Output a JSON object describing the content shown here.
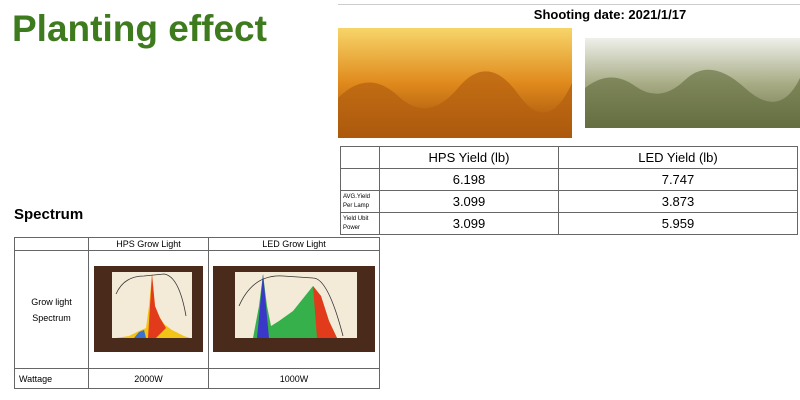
{
  "header": {
    "title": "Planting effect",
    "shooting_date": "Shooting date: 2021/1/17"
  },
  "yield_table": {
    "headers": [
      "HPS Yield (lb)",
      "LED Yield (lb)"
    ],
    "rows": [
      {
        "values": [
          6.198,
          7.747
        ]
      },
      {
        "label": [
          "AVG.Yield",
          "Per Lamp"
        ],
        "values": [
          3.099,
          3.873
        ]
      },
      {
        "label": [
          "Yield Ubit",
          "Power"
        ],
        "values": [
          3.099,
          5.959
        ]
      }
    ]
  },
  "spectrum": {
    "title": "Spectrum",
    "columns": [
      "HPS Grow Light",
      "LED Grow Light"
    ],
    "row_label": [
      "Grow light",
      "Spectrum"
    ],
    "wattage_label": "Wattage",
    "wattage": [
      "2000W",
      "1000W"
    ]
  }
}
